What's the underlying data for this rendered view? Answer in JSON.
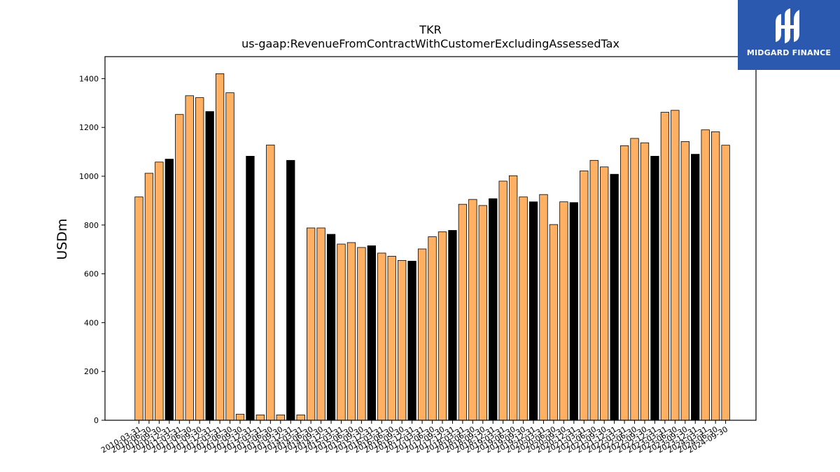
{
  "chart_data": {
    "type": "bar",
    "title": "TKR",
    "subtitle": "us-gaap:RevenueFromContractWithCustomerExcludingAssessedTax",
    "xlabel": "",
    "ylabel": "USDm",
    "ylim": [
      0,
      1490
    ],
    "yticks": [
      0,
      200,
      400,
      600,
      800,
      1000,
      1200,
      1400
    ],
    "grid": false,
    "colors": {
      "quarter": "#ffb062",
      "annual": "#000000",
      "edge": "#000000"
    },
    "categories": [
      "2010-03-31",
      "2010-06-30",
      "2010-09-30",
      "2010-12-31",
      "2011-03-31",
      "2011-06-30",
      "2011-09-30",
      "2011-12-31",
      "2012-03-31",
      "2012-06-30",
      "2012-09-30",
      "2012-12-31",
      "2013-03-31",
      "2013-06-30",
      "2013-09-30",
      "2013-12-31",
      "2014-03-31",
      "2014-06-30",
      "2014-09-30",
      "2014-12-31",
      "2015-03-31",
      "2015-06-30",
      "2015-09-30",
      "2015-12-31",
      "2016-03-31",
      "2016-06-30",
      "2016-09-30",
      "2016-12-31",
      "2017-03-31",
      "2017-06-30",
      "2017-09-30",
      "2017-12-31",
      "2018-03-31",
      "2018-06-30",
      "2018-09-30",
      "2018-12-31",
      "2019-03-31",
      "2019-06-30",
      "2019-09-30",
      "2019-12-31",
      "2020-03-31",
      "2020-06-30",
      "2020-09-30",
      "2020-12-31",
      "2021-03-31",
      "2021-06-30",
      "2021-09-30",
      "2021-12-31",
      "2022-03-31",
      "2022-06-30",
      "2022-09-30",
      "2022-12-31",
      "2023-03-31",
      "2023-06-30",
      "2023-09-30",
      "2023-12-31",
      "2024-03-31",
      "2024-06-30",
      "2024-09-30"
    ],
    "values": [
      915,
      1012,
      1058,
      1070,
      1253,
      1330,
      1322,
      1265,
      1420,
      1342,
      25,
      1082,
      22,
      1128,
      22,
      1065,
      22,
      788,
      788,
      762,
      722,
      728,
      708,
      715,
      685,
      672,
      655,
      652,
      702,
      752,
      772,
      778,
      885,
      905,
      880,
      908,
      980,
      1002,
      915,
      895,
      925,
      802,
      895,
      892,
      1022,
      1065,
      1038,
      1008,
      1125,
      1155,
      1137,
      1082,
      1262,
      1270,
      1142,
      1090,
      1190,
      1182,
      1127
    ],
    "annual_flags": [
      0,
      0,
      0,
      1,
      0,
      0,
      0,
      1,
      0,
      0,
      0,
      1,
      0,
      0,
      0,
      1,
      0,
      0,
      0,
      1,
      0,
      0,
      0,
      1,
      0,
      0,
      0,
      1,
      0,
      0,
      0,
      1,
      0,
      0,
      0,
      1,
      0,
      0,
      0,
      1,
      0,
      0,
      0,
      1,
      0,
      0,
      0,
      1,
      0,
      0,
      0,
      1,
      0,
      0,
      0,
      1,
      0,
      0,
      0
    ]
  },
  "logo": {
    "text": "MIDGARD FINANCE",
    "background": "#2b59b0"
  }
}
